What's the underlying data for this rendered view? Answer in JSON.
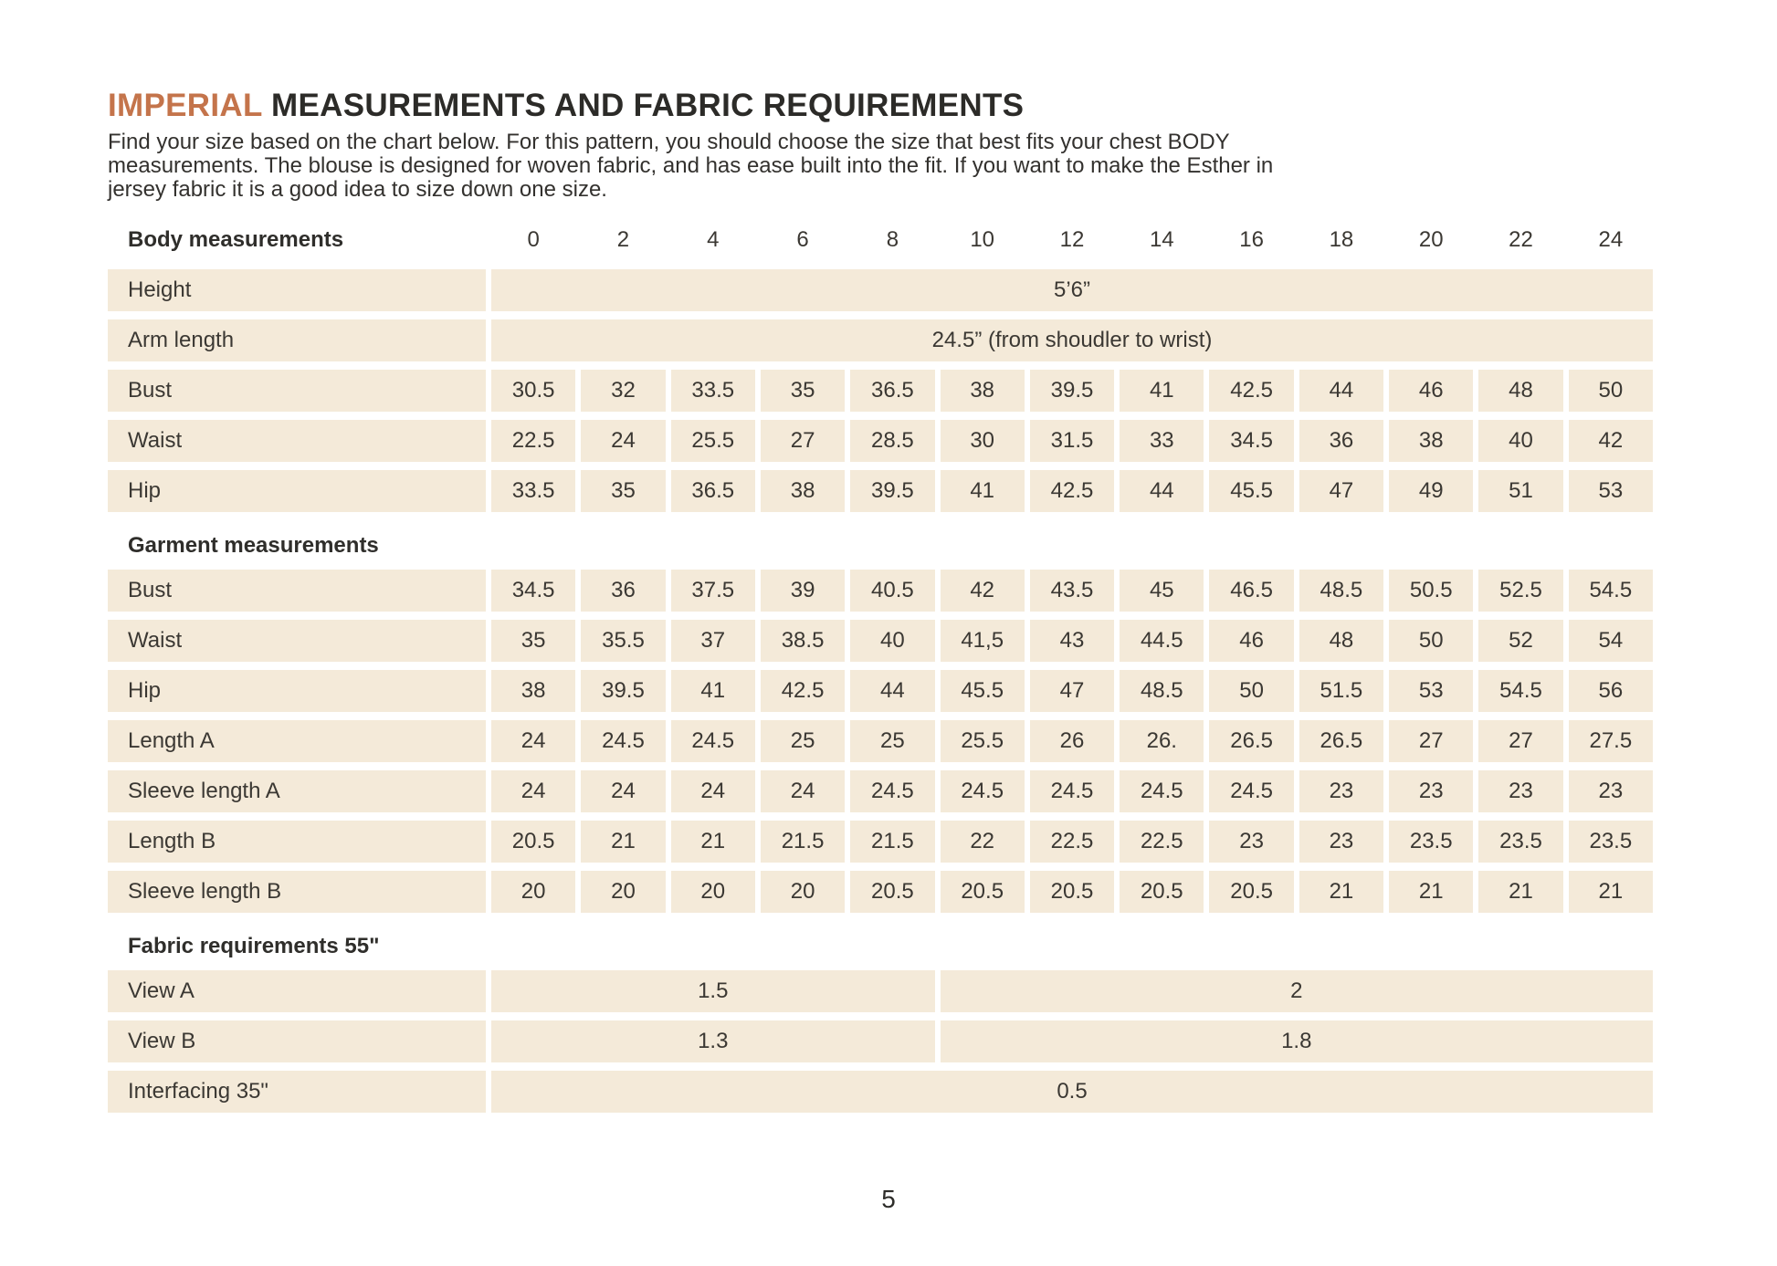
{
  "colors": {
    "accent": "#c4744b",
    "row_bg": "#f4ead9",
    "heading": "#2c2b28",
    "text": "#3b3833"
  },
  "header": {
    "title_accent": "IMPERIAL",
    "title_rest": " MEASUREMENTS AND FABRIC REQUIREMENTS",
    "intro_lines": [
      "Find your size based on the chart below. For this pattern, you should choose the size that best fits your chest BODY",
      "measurements.  The blouse is designed for woven fabric, and has ease built into the fit. If you want to make the Esther in",
      "jersey fabric it is a good idea to size down one size."
    ]
  },
  "table": {
    "sizes": [
      "0",
      "2",
      "4",
      "6",
      "8",
      "10",
      "12",
      "14",
      "16",
      "18",
      "20",
      "22",
      "24"
    ],
    "sections": [
      {
        "title": "Body measurements",
        "rows": [
          {
            "label": "Height",
            "type": "full",
            "value": "5’6”"
          },
          {
            "label": "Arm length",
            "type": "full",
            "value": "24.5” (from shoudler to wrist)"
          },
          {
            "label": "Bust",
            "type": "cells",
            "values": [
              "30.5",
              "32",
              "33.5",
              "35",
              "36.5",
              "38",
              "39.5",
              "41",
              "42.5",
              "44",
              "46",
              "48",
              "50"
            ]
          },
          {
            "label": "Waist",
            "type": "cells",
            "values": [
              "22.5",
              "24",
              "25.5",
              "27",
              "28.5",
              "30",
              "31.5",
              "33",
              "34.5",
              "36",
              "38",
              "40",
              "42"
            ]
          },
          {
            "label": "Hip",
            "type": "cells",
            "values": [
              "33.5",
              "35",
              "36.5",
              "38",
              "39.5",
              "41",
              "42.5",
              "44",
              "45.5",
              "47",
              "49",
              "51",
              "53"
            ]
          }
        ]
      },
      {
        "title": "Garment measurements",
        "rows": [
          {
            "label": "Bust",
            "type": "cells",
            "values": [
              "34.5",
              "36",
              "37.5",
              "39",
              "40.5",
              "42",
              "43.5",
              "45",
              "46.5",
              "48.5",
              "50.5",
              "52.5",
              "54.5"
            ]
          },
          {
            "label": "Waist",
            "type": "cells",
            "values": [
              "35",
              "35.5",
              "37",
              "38.5",
              "40",
              "41,5",
              "43",
              "44.5",
              "46",
              "48",
              "50",
              "52",
              "54"
            ]
          },
          {
            "label": "Hip",
            "type": "cells",
            "values": [
              "38",
              "39.5",
              "41",
              "42.5",
              "44",
              "45.5",
              "47",
              "48.5",
              "50",
              "51.5",
              "53",
              "54.5",
              "56"
            ]
          },
          {
            "label": "Length A",
            "type": "cells",
            "values": [
              "24",
              "24.5",
              "24.5",
              "25",
              "25",
              "25.5",
              "26",
              "26.",
              "26.5",
              "26.5",
              "27",
              "27",
              "27.5"
            ]
          },
          {
            "label": "Sleeve length A",
            "type": "cells",
            "values": [
              "24",
              "24",
              "24",
              "24",
              "24.5",
              "24.5",
              "24.5",
              "24.5",
              "24.5",
              "23",
              "23",
              "23",
              "23"
            ]
          },
          {
            "label": "Length B",
            "type": "cells",
            "values": [
              "20.5",
              "21",
              "21",
              "21.5",
              "21.5",
              "22",
              "22.5",
              "22.5",
              "23",
              "23",
              "23.5",
              "23.5",
              "23.5"
            ]
          },
          {
            "label": "Sleeve length B",
            "type": "cells",
            "values": [
              "20",
              "20",
              "20",
              "20",
              "20.5",
              "20.5",
              "20.5",
              "20.5",
              "20.5",
              "21",
              "21",
              "21",
              "21"
            ]
          }
        ]
      },
      {
        "title": "Fabric requirements 55\"",
        "rows": [
          {
            "label": "View A",
            "type": "split",
            "values": [
              "1.5",
              "2"
            ]
          },
          {
            "label": "View B",
            "type": "split",
            "values": [
              "1.3",
              "1.8"
            ]
          },
          {
            "label": "Interfacing 35\"",
            "type": "full",
            "value": "0.5"
          }
        ]
      }
    ]
  },
  "footer": {
    "page_number": "5"
  }
}
